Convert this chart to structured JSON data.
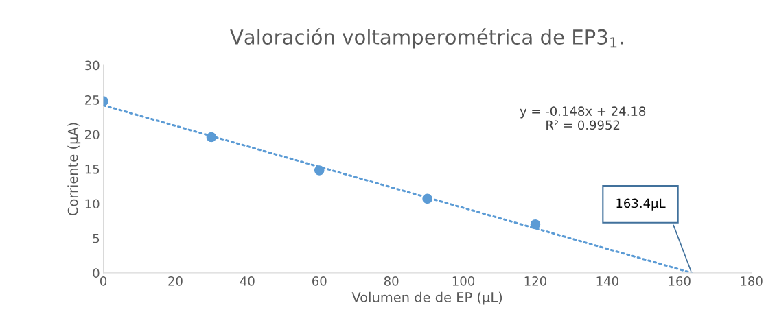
{
  "chart_data": {
    "type": "scatter",
    "title": "Valoración voltamperométrica de EP3$_{1}$.",
    "xlabel": "Volumen de de EP (µL)",
    "ylabel": "Corriente (µA)",
    "xlim": [
      0,
      180
    ],
    "xticks": [
      0,
      20,
      40,
      60,
      80,
      100,
      120,
      140,
      160,
      180
    ],
    "ylim": [
      0,
      30
    ],
    "yticks": [
      0,
      5,
      10,
      15,
      20,
      25,
      30
    ],
    "grid": false,
    "legend": false,
    "series": [
      {
        "color": "#5b9bd5",
        "marker": "circle",
        "x": [
          0,
          30,
          60,
          90,
          120
        ],
        "values": [
          24.8,
          19.6,
          14.8,
          10.7,
          7.0
        ]
      },
      {
        "type": "line",
        "color": "#5b9bd5",
        "line_style": "dotted",
        "marker": "none",
        "x": [
          0,
          163.4
        ],
        "values": [
          24.2,
          0
        ]
      }
    ],
    "annotations": [
      "y = -0.148x + 24.18\nR² = 0.9952",
      "163.4µL"
    ]
  }
}
